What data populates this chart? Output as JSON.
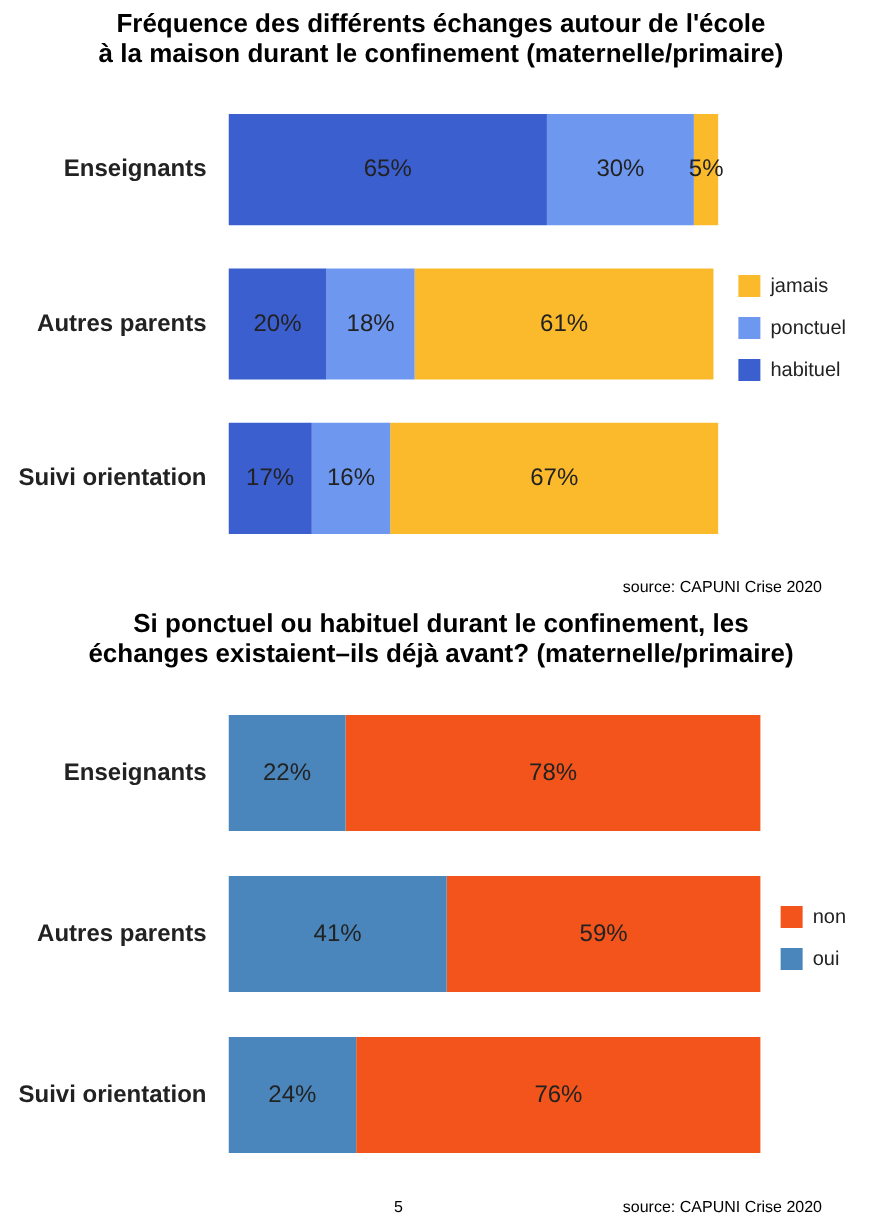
{
  "chart_data": [
    {
      "type": "bar",
      "orientation": "horizontal",
      "stacked": true,
      "title": "Fréquence des différents échanges autour de l'école\nà la maison durant le confinement (maternelle/primaire)",
      "categories": [
        "Enseignants",
        "Autres parents",
        "Suivi orientation"
      ],
      "legend": "right",
      "tick_labels": "y",
      "series": [
        {
          "name": "habituel",
          "color": "#3b5fcf",
          "values": [
            65,
            20,
            17
          ],
          "value_labels": [
            "65%",
            "20%",
            "17%"
          ]
        },
        {
          "name": "ponctuel",
          "color": "#6e98ef",
          "values": [
            30,
            18,
            16
          ],
          "value_labels": [
            "30%",
            "18%",
            "16%"
          ]
        },
        {
          "name": "jamais",
          "color": "#fbba2c",
          "values": [
            5,
            61,
            67
          ],
          "value_labels": [
            "5%",
            "61%",
            "67%"
          ]
        }
      ],
      "annotations": [
        "source: CAPUNI Crise 2020"
      ]
    },
    {
      "type": "bar",
      "orientation": "horizontal",
      "stacked": true,
      "title": "Si ponctuel ou habituel durant le confinement, les\néchanges existaient–ils déjà avant? (maternelle/primaire)",
      "categories": [
        "Enseignants",
        "Autres parents",
        "Suivi orientation"
      ],
      "legend": "right",
      "tick_labels": "y",
      "series": [
        {
          "name": "oui",
          "color": "#4a86bb",
          "values": [
            22,
            41,
            24
          ],
          "value_labels": [
            "22%",
            "41%",
            "24%"
          ]
        },
        {
          "name": "non",
          "color": "#f2541b",
          "values": [
            78,
            59,
            76
          ],
          "value_labels": [
            "78%",
            "59%",
            "76%"
          ]
        }
      ],
      "annotations": [
        "5",
        "source: CAPUNI Crise 2020"
      ]
    }
  ]
}
